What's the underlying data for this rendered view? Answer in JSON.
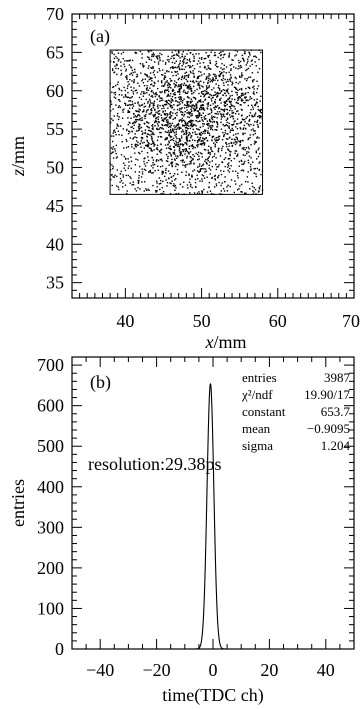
{
  "chart_data": [
    {
      "type": "scatter",
      "panel_label": "(a)",
      "xlabel_var": "x",
      "xlabel_unit": "/mm",
      "ylabel_var": "z",
      "ylabel_unit": "/mm",
      "xlim": [
        33,
        70
      ],
      "ylim": [
        33,
        70
      ],
      "x_ticks": [
        "40",
        "50",
        "60",
        "70"
      ],
      "y_ticks": [
        "35",
        "40",
        "45",
        "50",
        "55",
        "60",
        "65",
        "70"
      ],
      "region": {
        "x": [
          38,
          58
        ],
        "z": [
          46.5,
          65.3
        ]
      },
      "cluster": {
        "center_x": 48.5,
        "center_z": 57,
        "sigma_x": 4.5,
        "sigma_z": 4.5
      },
      "n_points": 2600
    },
    {
      "type": "line",
      "panel_label": "(b)",
      "xlabel": "time(TDC ch)",
      "ylabel": "entries",
      "xlim": [
        -50,
        50
      ],
      "ylim": [
        0,
        720
      ],
      "x_ticks": [
        "−40",
        "−20",
        "0",
        "20",
        "40"
      ],
      "y_ticks": [
        "0",
        "100",
        "200",
        "300",
        "400",
        "500",
        "600",
        "700"
      ],
      "annotation": "resolution:29.38ps",
      "gauss": {
        "constant": 653.7,
        "mean": -0.9095,
        "sigma": 1.204
      },
      "stats": [
        {
          "name": "entries",
          "value": "3987"
        },
        {
          "name": "χ²/ndf",
          "value": "19.90/17"
        },
        {
          "name": "constant",
          "value": "653.7"
        },
        {
          "name": "mean",
          "value": "−0.9095"
        },
        {
          "name": "sigma",
          "value": "1.204"
        }
      ]
    }
  ]
}
